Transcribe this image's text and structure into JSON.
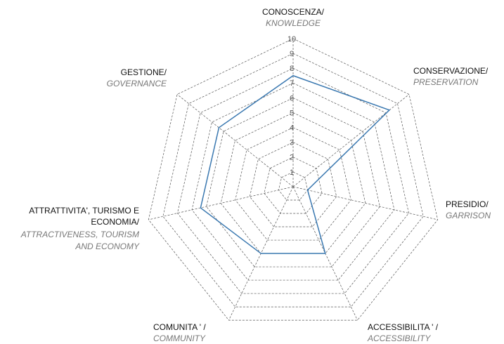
{
  "chart_data": {
    "type": "radar",
    "categories": [
      {
        "name": [
          "CONOSCENZA/"
        ],
        "translation": [
          "KNOWLEDGE"
        ]
      },
      {
        "name": [
          "CONSERVAZIONE/"
        ],
        "translation": [
          "PRESERVATION"
        ]
      },
      {
        "name": [
          "PRESIDIO/"
        ],
        "translation": [
          "GARRISON"
        ]
      },
      {
        "name": [
          "ACCESSIBILITA ' /"
        ],
        "translation": [
          "ACCESSIBILITY"
        ]
      },
      {
        "name": [
          "COMUNITA ' /"
        ],
        "translation": [
          "COMMUNITY"
        ]
      },
      {
        "name": [
          "ATTRATTIVITA', TURISMO E",
          "ECONOMIA/"
        ],
        "translation": [
          "ATTRACTIVENESS, TOURISM",
          "AND ECONOMY"
        ]
      },
      {
        "name": [
          "GESTIONE/"
        ],
        "translation": [
          "GOVERNANCE"
        ]
      }
    ],
    "values": [
      7.5,
      8.3,
      1,
      5,
      5,
      6.4,
      6.4
    ],
    "color": "#3a78b0",
    "rlim": [
      0,
      10
    ],
    "rticks": [
      1,
      2,
      3,
      4,
      5,
      6,
      7,
      8,
      9,
      10
    ],
    "grid": true
  }
}
